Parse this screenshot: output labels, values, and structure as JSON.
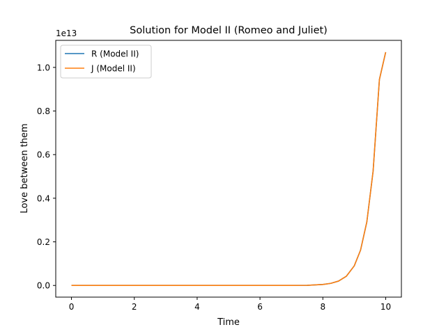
{
  "chart_data": {
    "type": "line",
    "title": "Solution for Model II (Romeo and Juliet)",
    "xlabel": "Time",
    "ylabel": "Love between them",
    "y_offset_label": "1e13",
    "xlim": [
      -0.5,
      10.5
    ],
    "ylim": [
      -0.0535,
      1.124
    ],
    "xticks": [
      0,
      2,
      4,
      6,
      8,
      10
    ],
    "xtick_labels": [
      "0",
      "2",
      "4",
      "6",
      "8",
      "10"
    ],
    "yticks": [
      0.0,
      0.2,
      0.4,
      0.6,
      0.8,
      1.0
    ],
    "ytick_labels": [
      "0.0",
      "0.2",
      "0.4",
      "0.6",
      "0.8",
      "1.0"
    ],
    "grid": false,
    "legend_position": "top-left",
    "x": [
      0,
      0.5,
      1,
      1.5,
      2,
      2.5,
      3,
      3.5,
      4,
      4.5,
      5,
      5.5,
      6,
      6.5,
      7,
      7.5,
      8,
      8.25,
      8.5,
      8.75,
      9,
      9.2,
      9.4,
      9.6,
      9.8,
      10
    ],
    "series": [
      {
        "name": "R (Model II)",
        "color": "#1f77b4",
        "values": [
          0,
          0,
          0,
          0,
          0,
          0,
          0,
          0,
          0,
          0,
          0,
          0,
          0,
          0,
          0.0001,
          0.0004,
          0.0045,
          0.0095,
          0.0201,
          0.0425,
          0.0899,
          0.1619,
          0.2914,
          0.5246,
          0.9444,
          1.07
        ]
      },
      {
        "name": "J (Model II)",
        "color": "#ff7f0e",
        "values": [
          0,
          0,
          0,
          0,
          0,
          0,
          0,
          0,
          0,
          0,
          0,
          0,
          0,
          0,
          0.0001,
          0.0004,
          0.0045,
          0.0095,
          0.0201,
          0.0425,
          0.0899,
          0.1619,
          0.2914,
          0.5246,
          0.9444,
          1.07
        ]
      }
    ]
  }
}
